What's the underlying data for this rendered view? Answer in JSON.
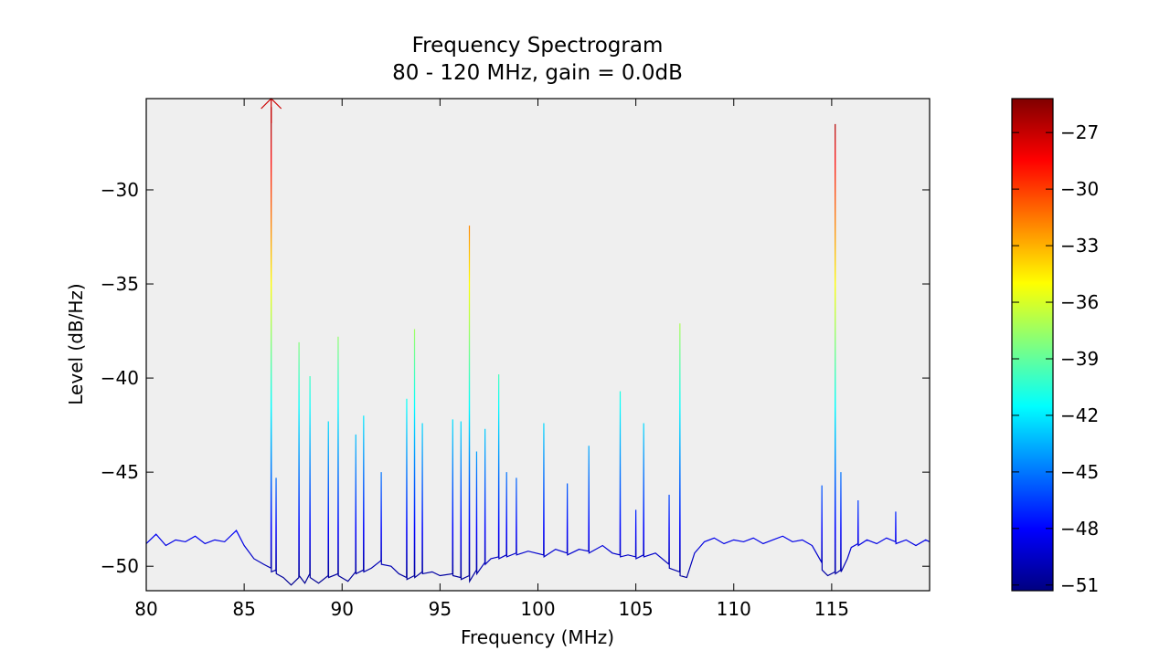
{
  "chart_data": {
    "type": "line",
    "title": "Frequency Spectrogram",
    "subtitle": "80 - 120 MHz, gain = 0.0dB",
    "x_label": "Frequency (MHz)",
    "y_label": "Level (dB/Hz)",
    "colormap": "jet",
    "x": [
      80,
      80.5,
      81,
      81.5,
      82,
      82.5,
      83,
      83.5,
      84,
      84.6,
      85,
      85.5,
      86,
      86.37,
      86.38,
      86.39,
      86.62,
      86.63,
      86.64,
      87.0,
      87.4,
      87.79,
      87.8,
      87.81,
      88.1,
      88.35,
      88.36,
      88.37,
      88.8,
      89.29,
      89.3,
      89.31,
      89.79,
      89.8,
      89.81,
      90.3,
      90.69,
      90.7,
      90.71,
      91.09,
      91.1,
      91.11,
      91.5,
      91.99,
      92.0,
      92.01,
      92.5,
      92.9,
      93.29,
      93.3,
      93.31,
      93.69,
      93.7,
      93.71,
      94.09,
      94.1,
      94.11,
      94.6,
      95.0,
      95.64,
      95.65,
      95.66,
      96.06,
      96.07,
      96.08,
      96.49,
      96.5,
      96.51,
      96.86,
      96.87,
      96.88,
      97.29,
      97.3,
      97.31,
      97.6,
      97.99,
      98.0,
      98.01,
      98.39,
      98.4,
      98.41,
      98.89,
      98.9,
      98.91,
      99.5,
      100.29,
      100.3,
      100.31,
      100.9,
      101.49,
      101.5,
      101.51,
      102.1,
      102.59,
      102.6,
      102.61,
      103.3,
      103.8,
      104.19,
      104.2,
      104.21,
      104.6,
      104.99,
      105.0,
      105.01,
      105.39,
      105.4,
      105.41,
      106.0,
      106.69,
      106.7,
      106.71,
      107.24,
      107.25,
      107.26,
      107.6,
      108.0,
      108.5,
      109,
      109.5,
      110,
      110.5,
      111,
      111.5,
      112,
      112.5,
      113,
      113.5,
      114,
      114.49,
      114.5,
      114.51,
      114.8,
      115.17,
      115.18,
      115.19,
      115.46,
      115.47,
      115.48,
      115.8,
      116.0,
      116.34,
      116.35,
      116.36,
      116.8,
      117.3,
      117.8,
      118.26,
      118.27,
      118.28,
      118.8,
      119.3,
      119.8,
      120
    ],
    "series": [
      {
        "name": "Level",
        "values": [
          -48.8,
          -48.3,
          -48.9,
          -48.6,
          -48.7,
          -48.4,
          -48.8,
          -48.6,
          -48.7,
          -48.1,
          -48.9,
          -49.6,
          -49.9,
          -50.1,
          -25.6,
          -50.3,
          -50.2,
          -45.3,
          -50.4,
          -50.6,
          -51.0,
          -50.6,
          -38.1,
          -50.5,
          -50.9,
          -50.4,
          -39.9,
          -50.6,
          -50.9,
          -50.5,
          -42.3,
          -50.6,
          -50.4,
          -37.8,
          -50.5,
          -50.8,
          -50.3,
          -43.0,
          -50.4,
          -50.2,
          -42.0,
          -50.3,
          -50.1,
          -49.7,
          -45.0,
          -49.9,
          -50.0,
          -50.4,
          -50.6,
          -41.1,
          -50.7,
          -50.5,
          -37.4,
          -50.6,
          -50.3,
          -42.4,
          -50.4,
          -50.3,
          -50.5,
          -50.4,
          -42.2,
          -50.5,
          -50.6,
          -42.3,
          -50.7,
          -50.5,
          -31.9,
          -50.8,
          -50.2,
          -43.9,
          -50.4,
          -49.8,
          -42.7,
          -49.9,
          -49.6,
          -49.5,
          -39.8,
          -49.6,
          -49.4,
          -45.0,
          -49.5,
          -49.3,
          -45.3,
          -49.4,
          -49.2,
          -49.4,
          -42.4,
          -49.5,
          -49.1,
          -49.3,
          -45.6,
          -49.4,
          -49.1,
          -49.2,
          -43.6,
          -49.3,
          -48.9,
          -49.3,
          -49.4,
          -40.7,
          -49.5,
          -49.4,
          -49.5,
          -47.0,
          -49.6,
          -49.4,
          -42.4,
          -49.5,
          -49.3,
          -49.9,
          -46.2,
          -50.1,
          -50.3,
          -37.1,
          -50.5,
          -50.6,
          -49.3,
          -48.7,
          -48.5,
          -48.8,
          -48.6,
          -48.7,
          -48.5,
          -48.8,
          -48.6,
          -48.4,
          -48.7,
          -48.6,
          -48.9,
          -49.8,
          -45.7,
          -50.2,
          -50.5,
          -50.3,
          -26.5,
          -50.4,
          -50.2,
          -45.0,
          -50.3,
          -49.6,
          -49.0,
          -48.8,
          -46.5,
          -48.9,
          -48.6,
          -48.8,
          -48.5,
          -48.7,
          -47.1,
          -48.8,
          -48.6,
          -48.9,
          -48.6,
          -48.7
        ]
      }
    ],
    "xlim": [
      80,
      120
    ],
    "ylim": [
      -51.3,
      -25.15
    ],
    "xticks": [
      80,
      85,
      90,
      95,
      100,
      105,
      110,
      115
    ],
    "yticks": [
      {
        "value": -50,
        "label": "−50"
      },
      {
        "value": -45,
        "label": "−45"
      },
      {
        "value": -40,
        "label": "−40"
      },
      {
        "value": -35,
        "label": "−35"
      },
      {
        "value": -30,
        "label": "−30"
      }
    ],
    "colorbar": {
      "lim": [
        -51.3,
        -25.2
      ],
      "ticks": [
        {
          "value": -51,
          "label": "−51"
        },
        {
          "value": -48,
          "label": "−48"
        },
        {
          "value": -45,
          "label": "−45"
        },
        {
          "value": -42,
          "label": "−42"
        },
        {
          "value": -39,
          "label": "−39"
        },
        {
          "value": -36,
          "label": "−36"
        },
        {
          "value": -33,
          "label": "−33"
        },
        {
          "value": -30,
          "label": "−30"
        },
        {
          "value": -27,
          "label": "−27"
        }
      ]
    }
  }
}
